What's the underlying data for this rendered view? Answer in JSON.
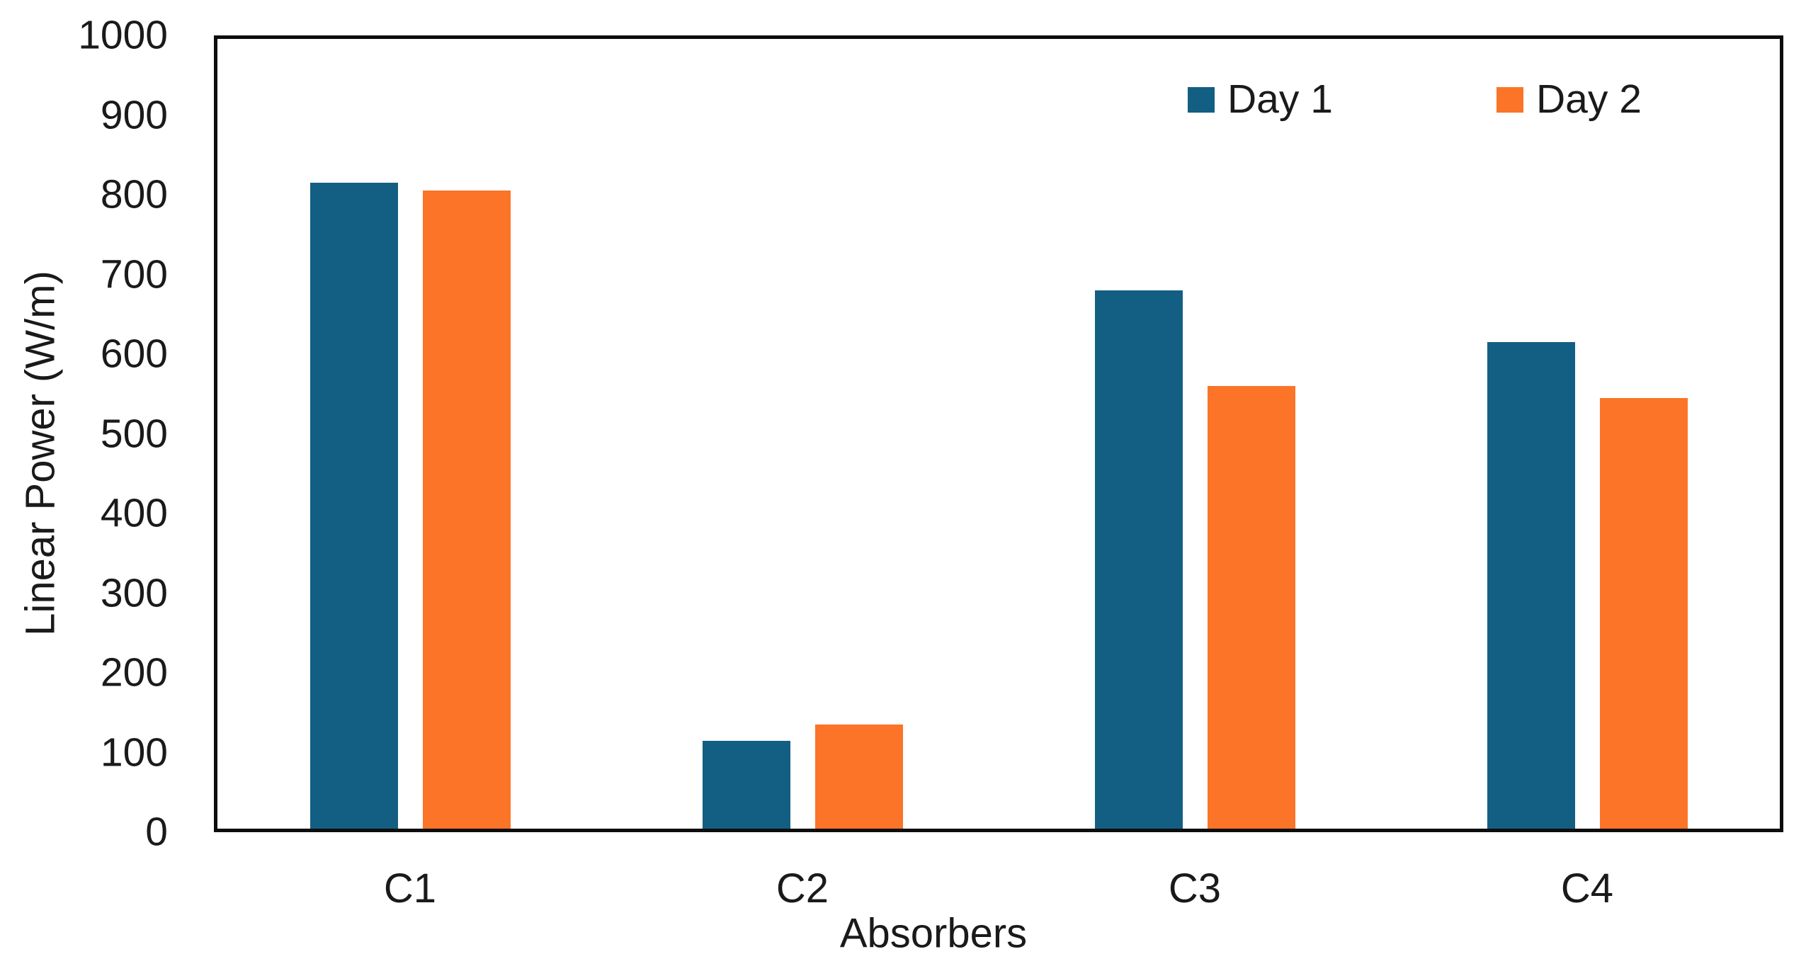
{
  "chart_data": {
    "type": "bar",
    "title": "",
    "categories": [
      "C1",
      "C2",
      "C3",
      "C4"
    ],
    "series": [
      {
        "name": "Day 1",
        "color": "#135F83",
        "values": [
          815,
          115,
          680,
          615
        ]
      },
      {
        "name": "Day 2",
        "color": "#FB7428",
        "values": [
          805,
          135,
          560,
          545
        ]
      }
    ],
    "xlabel": "Absorbers",
    "ylabel": "Linear Power (W/m)",
    "ylim": [
      0,
      1000
    ],
    "yticks": [
      0,
      100,
      200,
      300,
      400,
      500,
      600,
      700,
      800,
      900,
      1000
    ],
    "grid": false,
    "legend_position": "top-right",
    "axis_color": "#0d0d0d",
    "text_color": "#1a1a1a"
  }
}
